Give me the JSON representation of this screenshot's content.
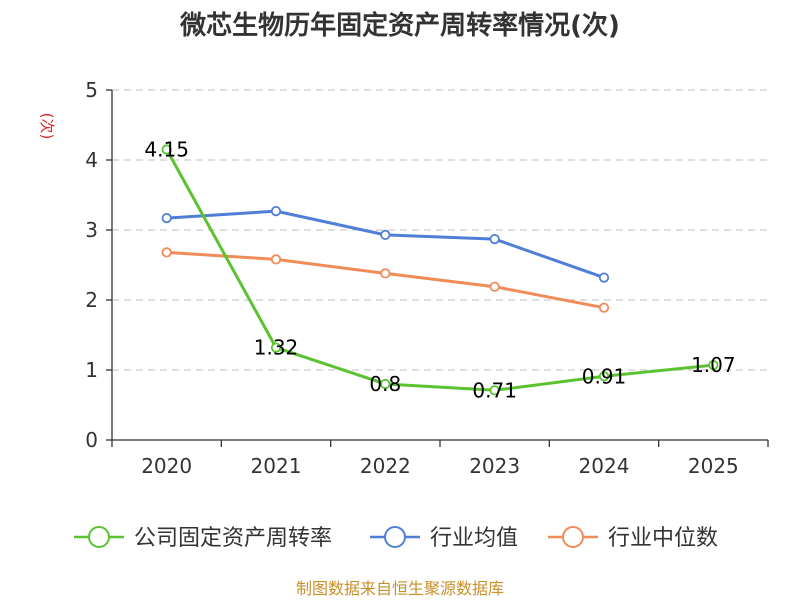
{
  "chart_data": {
    "type": "line",
    "title": "微芯生物历年固定资产周转率情况(次)",
    "ylabel": "(次)",
    "xlabel": "",
    "categories": [
      "2020",
      "2021",
      "2022",
      "2023",
      "2024",
      "2025"
    ],
    "ylim": [
      0,
      5
    ],
    "yticks": [
      0,
      1,
      2,
      3,
      4,
      5
    ],
    "grid": true,
    "legend_position": "bottom",
    "series": [
      {
        "name": "公司固定资产周转率",
        "color": "#5cc330",
        "values": [
          4.15,
          1.32,
          0.8,
          0.71,
          0.91,
          1.07
        ],
        "labels": [
          "4.15",
          "1.32",
          "0.8",
          "0.71",
          "0.91",
          "1.07"
        ]
      },
      {
        "name": "行业均值",
        "color": "#4f7fd6",
        "values": [
          3.17,
          3.27,
          2.93,
          2.87,
          2.32,
          null
        ]
      },
      {
        "name": "行业中位数",
        "color": "#f08c58",
        "values": [
          2.68,
          2.58,
          2.38,
          2.19,
          1.89,
          null
        ]
      }
    ]
  },
  "source": "制图数据来自恒生聚源数据库",
  "colors": {
    "ylabel": "#d62728",
    "source": "#c8902a",
    "axis": "#333333",
    "grid": "#cccccc"
  }
}
